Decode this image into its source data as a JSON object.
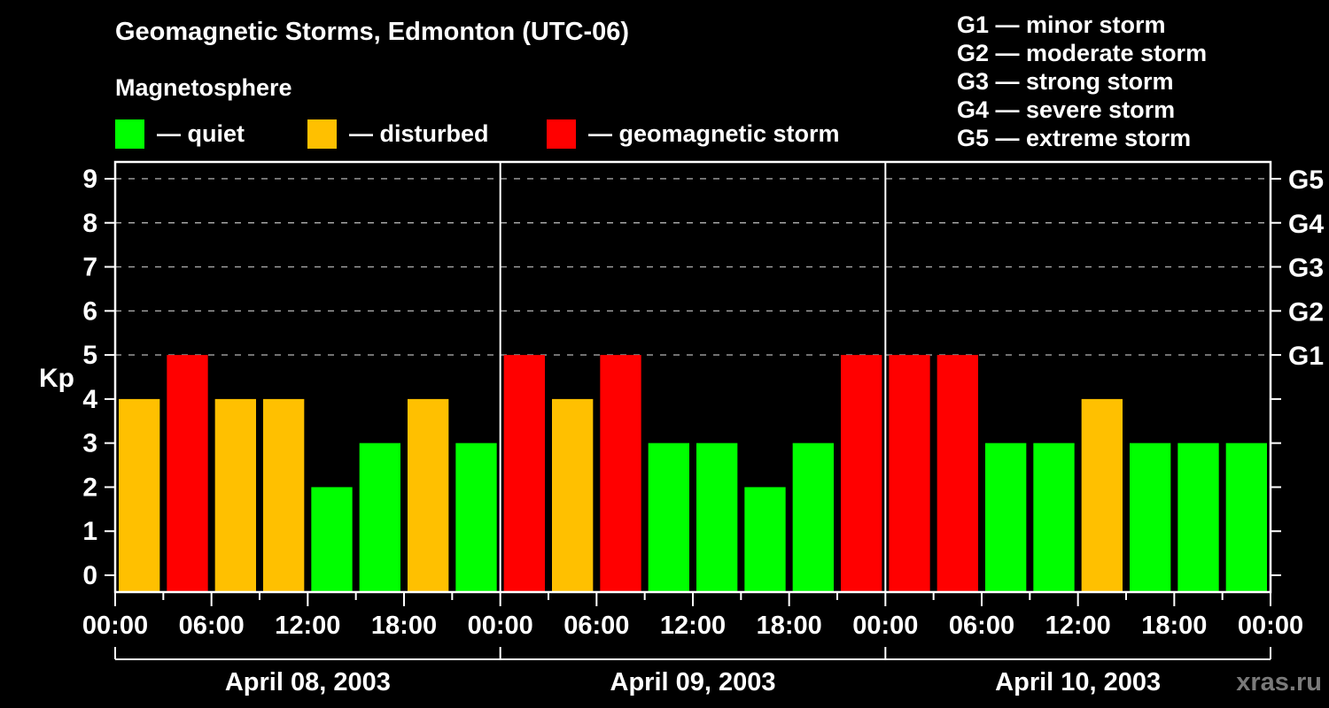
{
  "header": {
    "title": "Geomagnetic Storms, Edmonton (UTC-06)",
    "subtitle": "Magnetosphere",
    "legend_items": [
      {
        "name": "quiet",
        "label": "— quiet",
        "color": "#00ff00"
      },
      {
        "name": "disturbed",
        "label": "— disturbed",
        "color": "#ffc000"
      },
      {
        "name": "geomagnetic-storm",
        "label": "— geomagnetic storm",
        "color": "#ff0000"
      }
    ],
    "g_scale_legend": [
      "G1 — minor storm",
      "G2 — moderate storm",
      "G3 — strong storm",
      "G4 — severe storm",
      "G5 — extreme storm"
    ]
  },
  "watermark": "xras.ru",
  "chart_data": {
    "type": "bar",
    "title": "Geomagnetic Storms, Edmonton (UTC-06)",
    "ylabel": "Kp",
    "ylim": [
      0,
      9
    ],
    "y_ticks": [
      0,
      1,
      2,
      3,
      4,
      5,
      6,
      7,
      8,
      9
    ],
    "gridlines_at": [
      5,
      6,
      7,
      8,
      9
    ],
    "grid": "dashed horizontal at storm levels only",
    "right_axis": [
      {
        "kp": 5,
        "label": "G1"
      },
      {
        "kp": 6,
        "label": "G2"
      },
      {
        "kp": 7,
        "label": "G3"
      },
      {
        "kp": 8,
        "label": "G4"
      },
      {
        "kp": 9,
        "label": "G5"
      }
    ],
    "interval_hours": 3,
    "x_tick_labels_per_day": [
      "00:00",
      "06:00",
      "12:00",
      "18:00"
    ],
    "final_x_tick_label": "00:00",
    "colors": {
      "quiet": "#00ff00",
      "disturbed": "#ffc000",
      "storm": "#ff0000"
    },
    "color_rule": {
      "quiet": "kp<=3",
      "disturbed": "kp==4",
      "storm": "kp>=5"
    },
    "days": [
      {
        "date": "April 08, 2003",
        "kp_values": [
          4,
          5,
          4,
          4,
          2,
          3,
          4,
          3
        ]
      },
      {
        "date": "April 09, 2003",
        "kp_values": [
          5,
          4,
          5,
          3,
          3,
          2,
          3,
          5
        ]
      },
      {
        "date": "April 10, 2003",
        "kp_values": [
          5,
          5,
          3,
          3,
          4,
          3,
          3,
          3
        ]
      }
    ]
  }
}
